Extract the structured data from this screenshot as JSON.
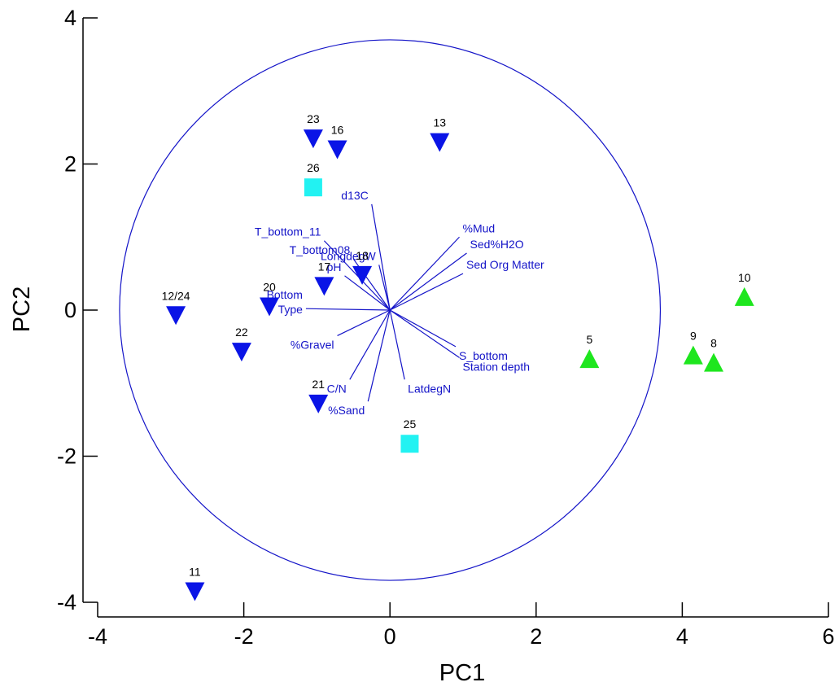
{
  "chart_data": {
    "type": "scatter",
    "title": "",
    "xlabel": "PC1",
    "ylabel": "PC2",
    "xlim": [
      -4,
      6
    ],
    "ylim": [
      -4,
      4
    ],
    "xticks": [
      "-4",
      "-2",
      "0",
      "2",
      "4",
      "6"
    ],
    "yticks": [
      "-4",
      "-2",
      "0",
      "2",
      "4"
    ],
    "grid": false,
    "correlation_circle_radius": 3.7,
    "colors": {
      "down_triangle": "#0a14e6",
      "up_triangle": "#1ee61e",
      "square": "#22f2f2",
      "vectors": "#1414c8"
    },
    "points": [
      {
        "label": "23",
        "x": -1.05,
        "y": 2.35,
        "marker": "down-triangle"
      },
      {
        "label": "16",
        "x": -0.72,
        "y": 2.2,
        "marker": "down-triangle"
      },
      {
        "label": "13",
        "x": 0.68,
        "y": 2.3,
        "marker": "down-triangle"
      },
      {
        "label": "26",
        "x": -1.05,
        "y": 1.68,
        "marker": "square"
      },
      {
        "label": "18",
        "x": -0.38,
        "y": 0.48,
        "marker": "down-triangle"
      },
      {
        "label": "17",
        "x": -0.9,
        "y": 0.33,
        "marker": "down-triangle"
      },
      {
        "label": "20",
        "x": -1.65,
        "y": 0.05,
        "marker": "down-triangle"
      },
      {
        "label": "12/24",
        "x": -2.93,
        "y": -0.07,
        "marker": "down-triangle"
      },
      {
        "label": "22",
        "x": -2.03,
        "y": -0.57,
        "marker": "down-triangle"
      },
      {
        "label": "21",
        "x": -0.98,
        "y": -1.28,
        "marker": "down-triangle"
      },
      {
        "label": "25",
        "x": 0.27,
        "y": -1.83,
        "marker": "square"
      },
      {
        "label": "11",
        "x": -2.67,
        "y": -3.85,
        "marker": "down-triangle"
      },
      {
        "label": "5",
        "x": 2.73,
        "y": -0.67,
        "marker": "up-triangle"
      },
      {
        "label": "9",
        "x": 4.15,
        "y": -0.62,
        "marker": "up-triangle"
      },
      {
        "label": "8",
        "x": 4.43,
        "y": -0.72,
        "marker": "up-triangle"
      },
      {
        "label": "10",
        "x": 4.85,
        "y": 0.18,
        "marker": "up-triangle"
      }
    ],
    "vectors": [
      {
        "label": "d13C",
        "x": -0.25,
        "y": 1.45
      },
      {
        "label": "T_bottom_11",
        "x": -0.9,
        "y": 0.95
      },
      {
        "label": "T_bottom08",
        "x": -0.5,
        "y": 0.7
      },
      {
        "label": "LongdegW",
        "x": -0.15,
        "y": 0.62
      },
      {
        "label": "pH",
        "x": -0.62,
        "y": 0.47
      },
      {
        "label": "%Mud",
        "x": 0.95,
        "y": 1.0
      },
      {
        "label": "Sed%H2O",
        "x": 1.05,
        "y": 0.78
      },
      {
        "label": "Sed Org Matter",
        "x": 1.0,
        "y": 0.5
      },
      {
        "label": "Bottom\nType",
        "x": -1.15,
        "y": 0.02
      },
      {
        "label": "%Gravel",
        "x": -0.72,
        "y": -0.35
      },
      {
        "label": "C/N",
        "x": -0.55,
        "y": -0.95
      },
      {
        "label": "%Sand",
        "x": -0.3,
        "y": -1.25
      },
      {
        "label": "LatdegN",
        "x": 0.2,
        "y": -0.95
      },
      {
        "label": "Station depth",
        "x": 0.95,
        "y": -0.65
      },
      {
        "label": "S_bottom",
        "x": 0.9,
        "y": -0.5
      }
    ]
  }
}
